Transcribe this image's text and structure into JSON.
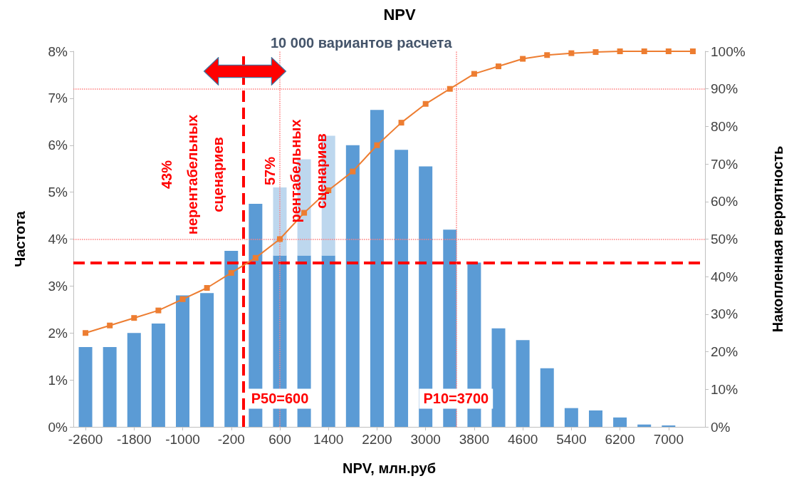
{
  "chart_data": {
    "type": "bar",
    "title": "NPV",
    "xlabel": "NPV, млн.руб",
    "ylabel": "Частота",
    "y2label": "Накопленная вероятность",
    "x": [
      -2600,
      -2200,
      -1800,
      -1400,
      -1000,
      -600,
      -200,
      200,
      600,
      1000,
      1400,
      1800,
      2200,
      2600,
      3000,
      3400,
      3800,
      4200,
      4600,
      5000,
      5400,
      5800,
      6200,
      6600,
      7000
    ],
    "stacked": true,
    "series": [
      {
        "color": "#5b9bd5",
        "values": [
          1.7,
          1.7,
          2.0,
          2.2,
          2.8,
          2.85,
          3.75,
          4.75,
          3.65,
          3.65,
          3.65,
          6.0,
          6.75,
          5.9,
          5.55,
          4.2,
          3.5,
          2.1,
          1.85,
          1.25,
          0.4,
          0.35,
          0.2,
          0.05,
          0.03
        ]
      },
      {
        "color": "#bdd7ee",
        "values": [
          null,
          null,
          null,
          null,
          null,
          null,
          null,
          null,
          1.45,
          2.05,
          2.55,
          null,
          null,
          null,
          null,
          null,
          null,
          null,
          null,
          null,
          null,
          null,
          null,
          null,
          null
        ]
      },
      {
        "type": "line",
        "axis": "y2",
        "color": "#ed7d31",
        "x": [
          -2600,
          -2200,
          -1800,
          -1400,
          -1000,
          -600,
          -200,
          200,
          600,
          1000,
          1400,
          1800,
          2200,
          2600,
          3000,
          3400,
          3800,
          4200,
          4600,
          5000,
          5400,
          5800,
          6200,
          6600,
          7000,
          7400
        ],
        "values": [
          25,
          27,
          29,
          31,
          34,
          37,
          41,
          45,
          50,
          57,
          63,
          68,
          75,
          81,
          86,
          90,
          94,
          96,
          98,
          99,
          99.5,
          99.8,
          100,
          100,
          100,
          100
        ]
      }
    ],
    "xlim": [
      -2800,
      7600
    ],
    "xticks": [
      -2600,
      -1800,
      -1000,
      -200,
      600,
      1400,
      2200,
      3000,
      3800,
      4600,
      5400,
      6200,
      7000
    ],
    "ylim": [
      0,
      8
    ],
    "yticks": [
      {
        "value": 0,
        "label": "0%"
      },
      {
        "value": 1,
        "label": "1%"
      },
      {
        "value": 2,
        "label": "2%"
      },
      {
        "value": 3,
        "label": "3%"
      },
      {
        "value": 4,
        "label": "4%"
      },
      {
        "value": 5,
        "label": "5%"
      },
      {
        "value": 6,
        "label": "6%"
      },
      {
        "value": 7,
        "label": "7%"
      },
      {
        "value": 8,
        "label": "8%"
      }
    ],
    "y2lim": [
      0,
      100
    ],
    "y2ticks": [
      {
        "value": 0,
        "label": "0%"
      },
      {
        "value": 10,
        "label": "10%"
      },
      {
        "value": 20,
        "label": "20%"
      },
      {
        "value": 30,
        "label": "30%"
      },
      {
        "value": 40,
        "label": "40%"
      },
      {
        "value": 50,
        "label": "50%"
      },
      {
        "value": 60,
        "label": "60%"
      },
      {
        "value": 70,
        "label": "70%"
      },
      {
        "value": 80,
        "label": "80%"
      },
      {
        "value": 90,
        "label": "90%"
      },
      {
        "value": 100,
        "label": "100%"
      }
    ],
    "marker": "square",
    "line_style": "solid",
    "grid": false,
    "ref_lines": [
      {
        "axis": "x",
        "value": 0,
        "color": "#ff0000",
        "line_style": "dashed"
      },
      {
        "axis": "y",
        "value": 3.5,
        "color": "#ff0000",
        "line_style": "dashed"
      },
      {
        "axis": "x",
        "value": 600,
        "color": "#ff8080",
        "line_style": "dotted"
      },
      {
        "axis": "x",
        "value": 3500,
        "color": "#ff8080",
        "line_style": "dotted"
      },
      {
        "axis": "y2",
        "value": 50,
        "color": "#ff8080",
        "line_style": "dotted"
      },
      {
        "axis": "y2",
        "value": 90,
        "color": "#ff8080",
        "line_style": "dotted"
      }
    ],
    "annotations": [
      "10 000 вариантов расчета",
      "43%\nнерентабельных\nсценариев",
      "57%\nрентабельных\nсценариев",
      {
        "text": "P50=600",
        "x": 600,
        "y": 0.6
      },
      {
        "text": "P10=3700",
        "x": 3500,
        "y": 0.6
      }
    ]
  }
}
